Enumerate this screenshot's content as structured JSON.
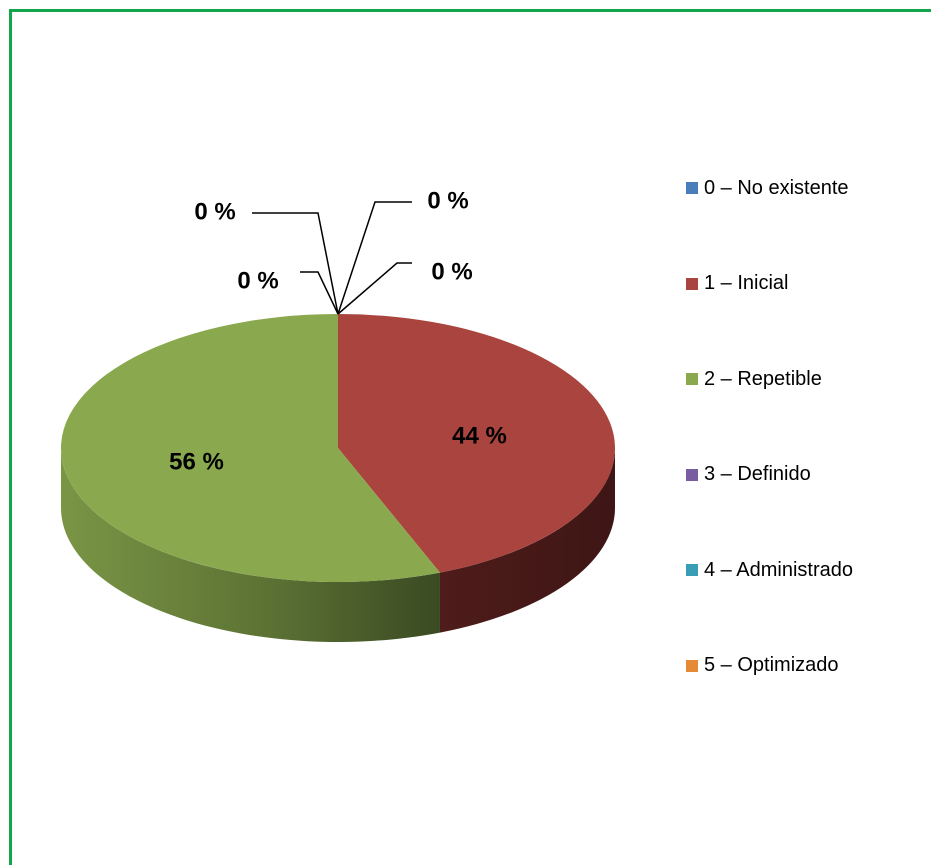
{
  "chart_data": {
    "type": "pie",
    "title": "",
    "categories": [
      "0 – No existente",
      "1 – Inicial",
      "2 – Repetible",
      "3 – Definido",
      "4 – Administrado",
      "5 – Optimizado"
    ],
    "values": [
      0,
      44,
      56,
      0,
      0,
      0
    ],
    "data_labels": [
      "0 %",
      "44 %",
      "56 %",
      "0 %",
      "0 %",
      "0 %"
    ],
    "colors": [
      "#4a7ebb",
      "#a9443f",
      "#8aa94e",
      "#7a5ca0",
      "#3a9db6",
      "#e58a35"
    ],
    "legend_position": "right",
    "style": "3d"
  }
}
